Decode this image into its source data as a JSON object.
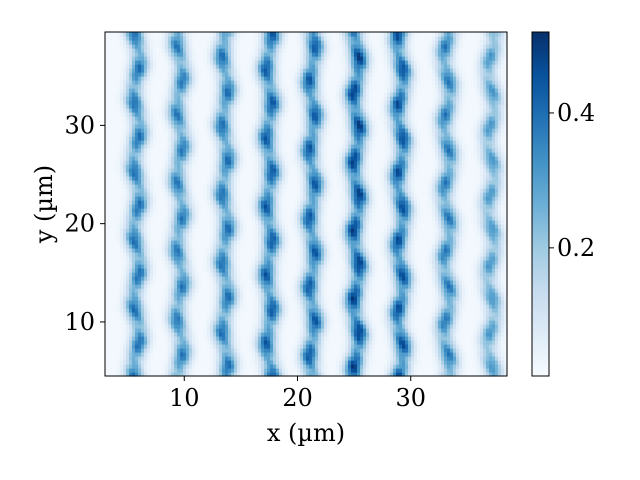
{
  "chart_data": {
    "type": "heatmap",
    "title": "",
    "xlabel": "x (µm)",
    "ylabel": "y (µm)",
    "xlim": [
      3,
      38.5
    ],
    "ylim": [
      4.5,
      39.5
    ],
    "x_ticks": [
      10,
      20,
      30
    ],
    "y_ticks": [
      10,
      20,
      30
    ],
    "colormap": "Blues",
    "colorbar": {
      "range": [
        0.01,
        0.52
      ],
      "ticks": [
        0.2,
        0.4
      ],
      "tick_labels": [
        "0.2",
        "0.4"
      ]
    },
    "stripe_centers_x": [
      5.8,
      9.6,
      13.6,
      17.5,
      21.3,
      25.2,
      29.1,
      33.2,
      37.1
    ],
    "stripe_peak_values": [
      0.38,
      0.36,
      0.38,
      0.42,
      0.42,
      0.47,
      0.44,
      0.36,
      0.3
    ],
    "grid": false
  }
}
